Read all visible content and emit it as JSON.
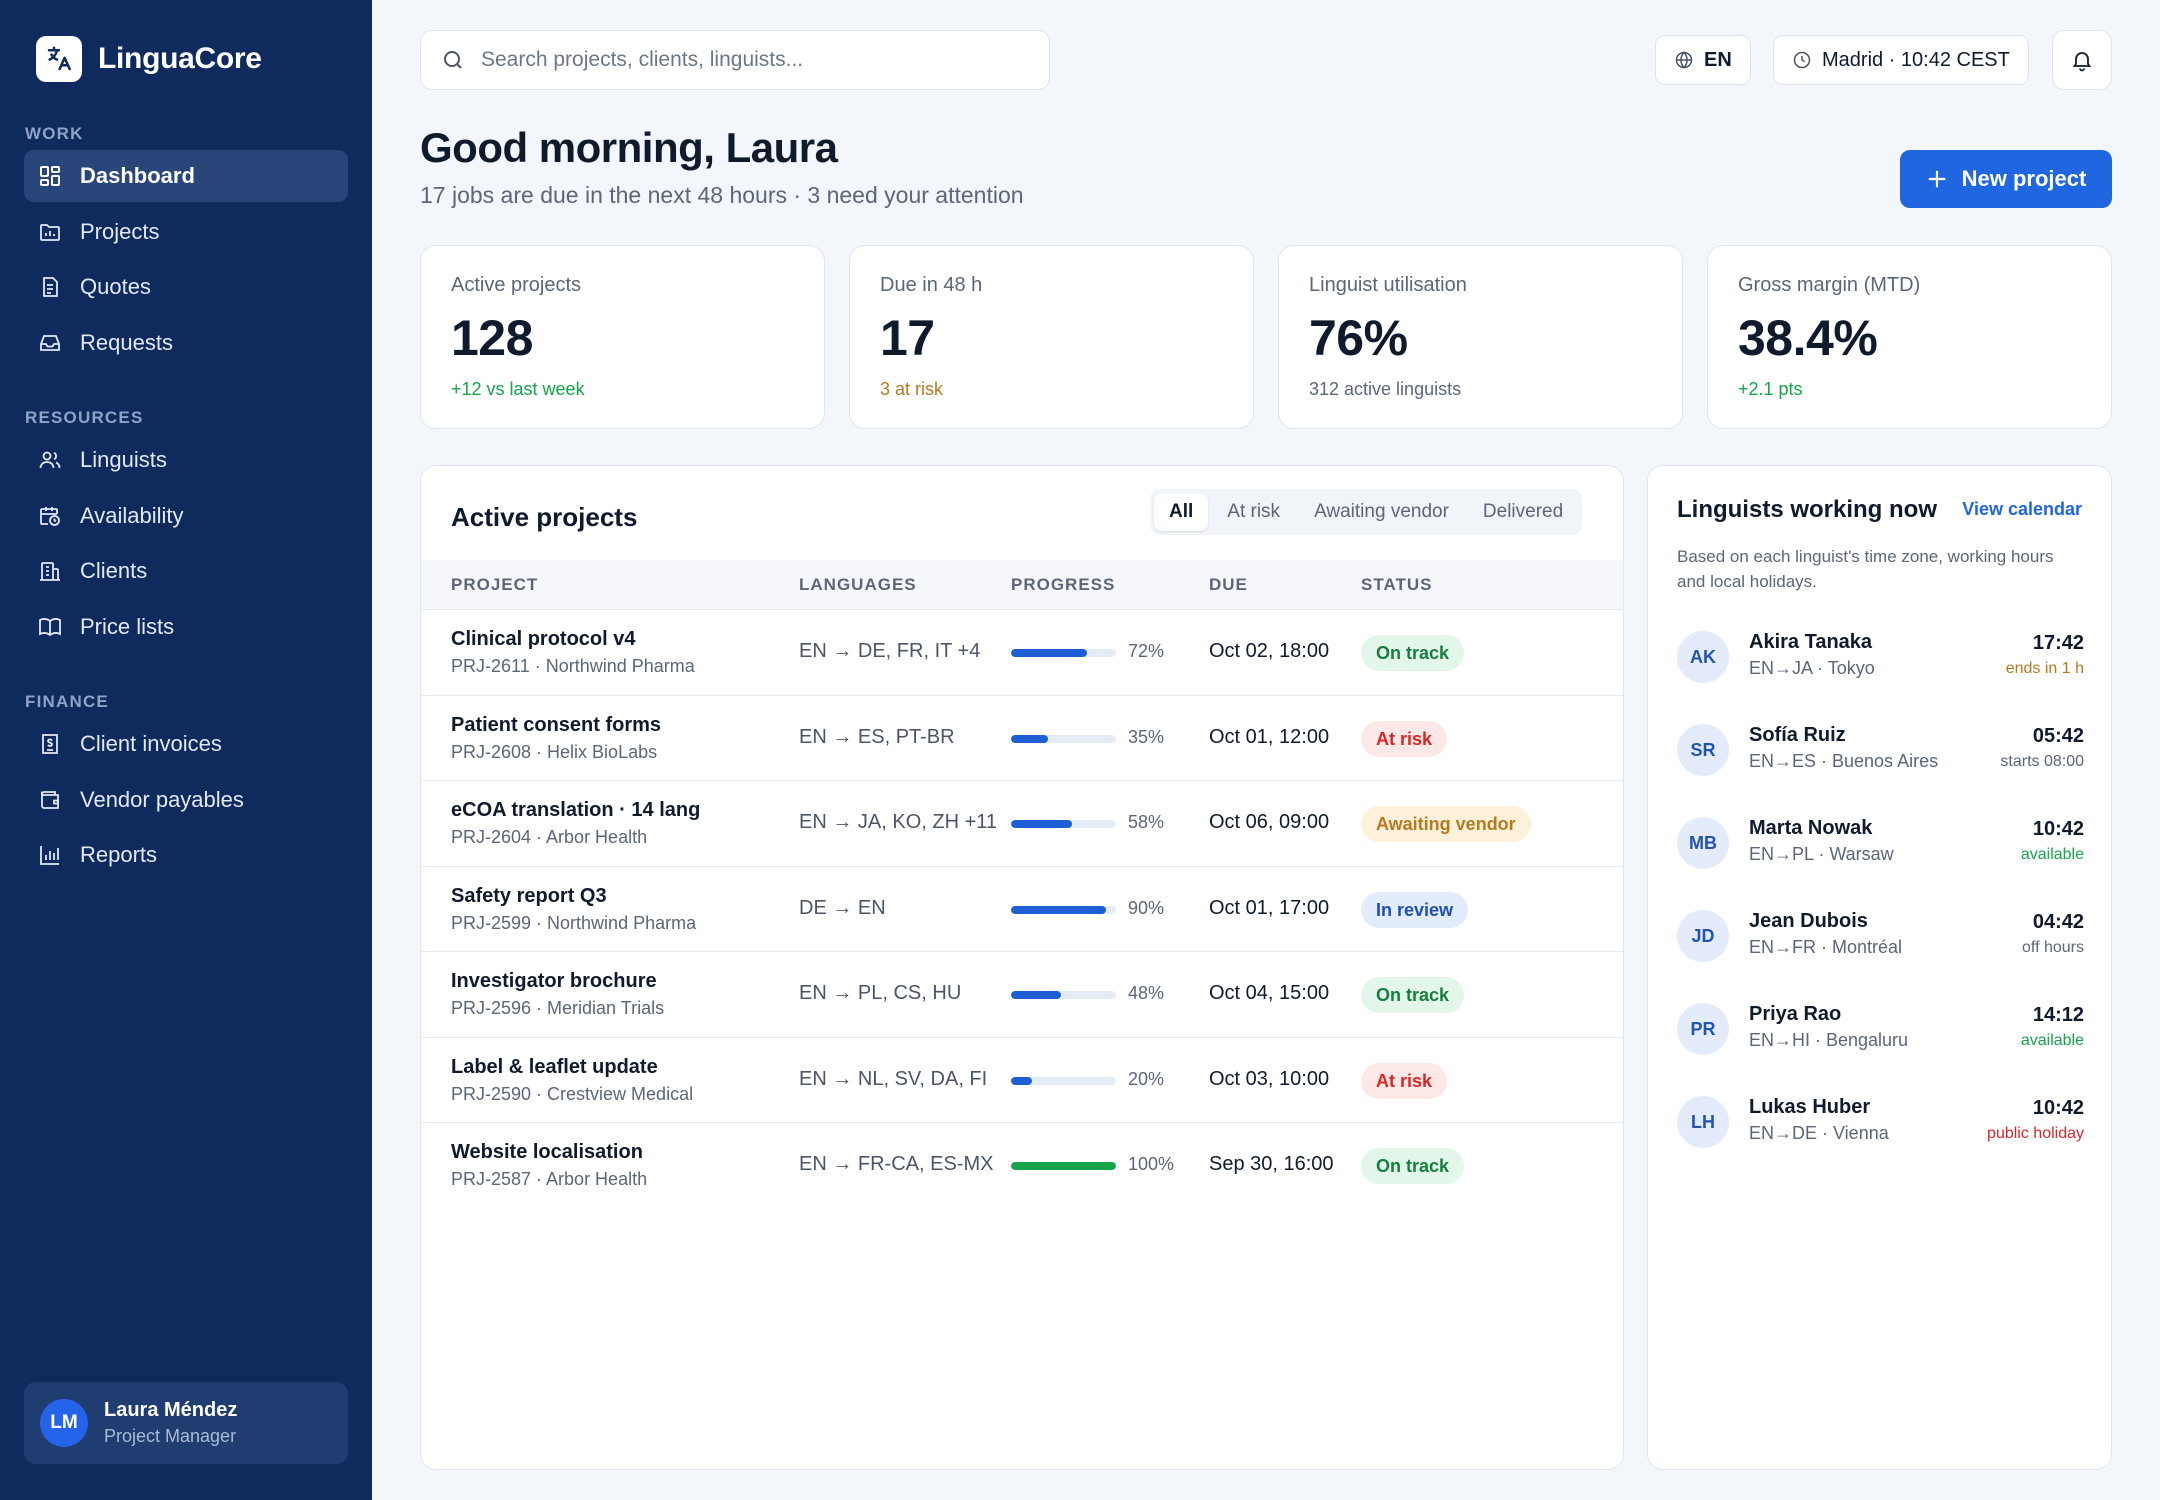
{
  "app": {
    "name": "LinguaCore"
  },
  "sidebar": {
    "sections": [
      {
        "heading": "WORK",
        "items": [
          {
            "label": "Dashboard",
            "icon": "grid-icon",
            "active": true
          },
          {
            "label": "Projects",
            "icon": "folder-chart-icon"
          },
          {
            "label": "Quotes",
            "icon": "document-icon"
          },
          {
            "label": "Requests",
            "icon": "inbox-icon"
          }
        ]
      },
      {
        "heading": "RESOURCES",
        "items": [
          {
            "label": "Linguists",
            "icon": "users-icon"
          },
          {
            "label": "Availability",
            "icon": "calendar-clock-icon"
          },
          {
            "label": "Clients",
            "icon": "building-icon"
          },
          {
            "label": "Price lists",
            "icon": "book-icon"
          }
        ]
      },
      {
        "heading": "FINANCE",
        "items": [
          {
            "label": "Client invoices",
            "icon": "invoice-icon"
          },
          {
            "label": "Vendor payables",
            "icon": "wallet-icon"
          },
          {
            "label": "Reports",
            "icon": "bar-chart-icon"
          }
        ]
      }
    ],
    "user": {
      "initials": "LM",
      "name": "Laura Méndez",
      "role": "Project Manager"
    }
  },
  "topbar": {
    "search_placeholder": "Search projects, clients, linguists...",
    "language": "EN",
    "clock": "Madrid · 10:42 CEST"
  },
  "header": {
    "greeting": "Good morning, Laura",
    "subtitle": "17 jobs are due in the next 48 hours · 3 need your attention",
    "new_project_label": "New project"
  },
  "kpis": [
    {
      "label": "Active projects",
      "value": "128",
      "note": "+12 vs last week",
      "note_color": "#16a34a"
    },
    {
      "label": "Due in 48 h",
      "value": "17",
      "note": "3 at risk",
      "note_color": "#b7791f"
    },
    {
      "label": "Linguist utilisation",
      "value": "76%",
      "note": "312 active linguists",
      "note_color": "#5b6678"
    },
    {
      "label": "Gross margin (MTD)",
      "value": "38.4%",
      "note": "+2.1 pts",
      "note_color": "#16a34a"
    }
  ],
  "projects": {
    "title": "Active projects",
    "tabs": [
      "All",
      "At risk",
      "Awaiting vendor",
      "Delivered"
    ],
    "active_tab": "All",
    "columns": [
      "PROJECT",
      "LANGUAGES",
      "PROGRESS",
      "DUE",
      "STATUS"
    ],
    "rows": [
      {
        "name": "Clinical protocol v4",
        "sub": "PRJ-2611 · Northwind Pharma",
        "languages": "EN → DE, FR, IT +4",
        "progress": 72,
        "progress_label": "72%",
        "due": "Oct 02, 18:00",
        "status": "On track"
      },
      {
        "name": "Patient consent forms",
        "sub": "PRJ-2608 · Helix BioLabs",
        "languages": "EN → ES, PT-BR",
        "progress": 35,
        "progress_label": "35%",
        "due": "Oct 01, 12:00",
        "status": "At risk"
      },
      {
        "name": "eCOA translation · 14 lang",
        "sub": "PRJ-2604 · Arbor Health",
        "languages": "EN → JA, KO, ZH +11",
        "progress": 58,
        "progress_label": "58%",
        "due": "Oct 06, 09:00",
        "status": "Awaiting vendor"
      },
      {
        "name": "Safety report Q3",
        "sub": "PRJ-2599 · Northwind Pharma",
        "languages": "DE → EN",
        "progress": 90,
        "progress_label": "90%",
        "due": "Oct 01, 17:00",
        "status": "In review"
      },
      {
        "name": "Investigator brochure",
        "sub": "PRJ-2596 · Meridian Trials",
        "languages": "EN → PL, CS, HU",
        "progress": 48,
        "progress_label": "48%",
        "due": "Oct 04, 15:00",
        "status": "On track"
      },
      {
        "name": "Label & leaflet update",
        "sub": "PRJ-2590 · Crestview Medical",
        "languages": "EN → NL, SV, DA, FI",
        "progress": 20,
        "progress_label": "20%",
        "due": "Oct 03, 10:00",
        "status": "At risk"
      },
      {
        "name": "Website localisation",
        "sub": "PRJ-2587 · Arbor Health",
        "languages": "EN → FR-CA, ES-MX",
        "progress": 100,
        "progress_label": "100%",
        "due": "Sep 30, 16:00",
        "status": "On track"
      }
    ],
    "status_colors": {
      "On track": {
        "bg": "#e3f6ea",
        "fg": "#15803d"
      },
      "At risk": {
        "bg": "#fde8e8",
        "fg": "#dc2626"
      },
      "Awaiting vendor": {
        "bg": "#fdf1d9",
        "fg": "#b7791f"
      },
      "In review": {
        "bg": "#e3ecfb",
        "fg": "#1d4fb8"
      }
    },
    "bar_colors": {
      "default": "#1f5fd6",
      "complete": "#16a34a"
    }
  },
  "linguists": {
    "title": "Linguists working now",
    "link": "View calendar",
    "description": "Based on each linguist's time zone, working hours and local holidays.",
    "people": [
      {
        "initials": "AK",
        "name": "Akira Tanaka",
        "sub": "EN→JA · Tokyo",
        "time": "17:42",
        "status": "ends in 1 h",
        "status_color": "#b7791f"
      },
      {
        "initials": "SR",
        "name": "Sofía Ruiz",
        "sub": "EN→ES · Buenos Aires",
        "time": "05:42",
        "status": "starts 08:00",
        "status_color": "#5b6678"
      },
      {
        "initials": "MB",
        "name": "Marta Nowak",
        "sub": "EN→PL · Warsaw",
        "time": "10:42",
        "status": "available",
        "status_color": "#16a34a"
      },
      {
        "initials": "JD",
        "name": "Jean Dubois",
        "sub": "EN→FR · Montréal",
        "time": "04:42",
        "status": "off hours",
        "status_color": "#5b6678"
      },
      {
        "initials": "PR",
        "name": "Priya Rao",
        "sub": "EN→HI · Bengaluru",
        "time": "14:12",
        "status": "available",
        "status_color": "#16a34a"
      },
      {
        "initials": "LH",
        "name": "Lukas Huber",
        "sub": "EN→DE · Vienna",
        "time": "10:42",
        "status": "public holiday",
        "status_color": "#dc2626"
      }
    ]
  },
  "colors": {
    "sidebar": "#0f2a5c",
    "accent": "#1f66e0",
    "background": "#f3f6fa"
  }
}
